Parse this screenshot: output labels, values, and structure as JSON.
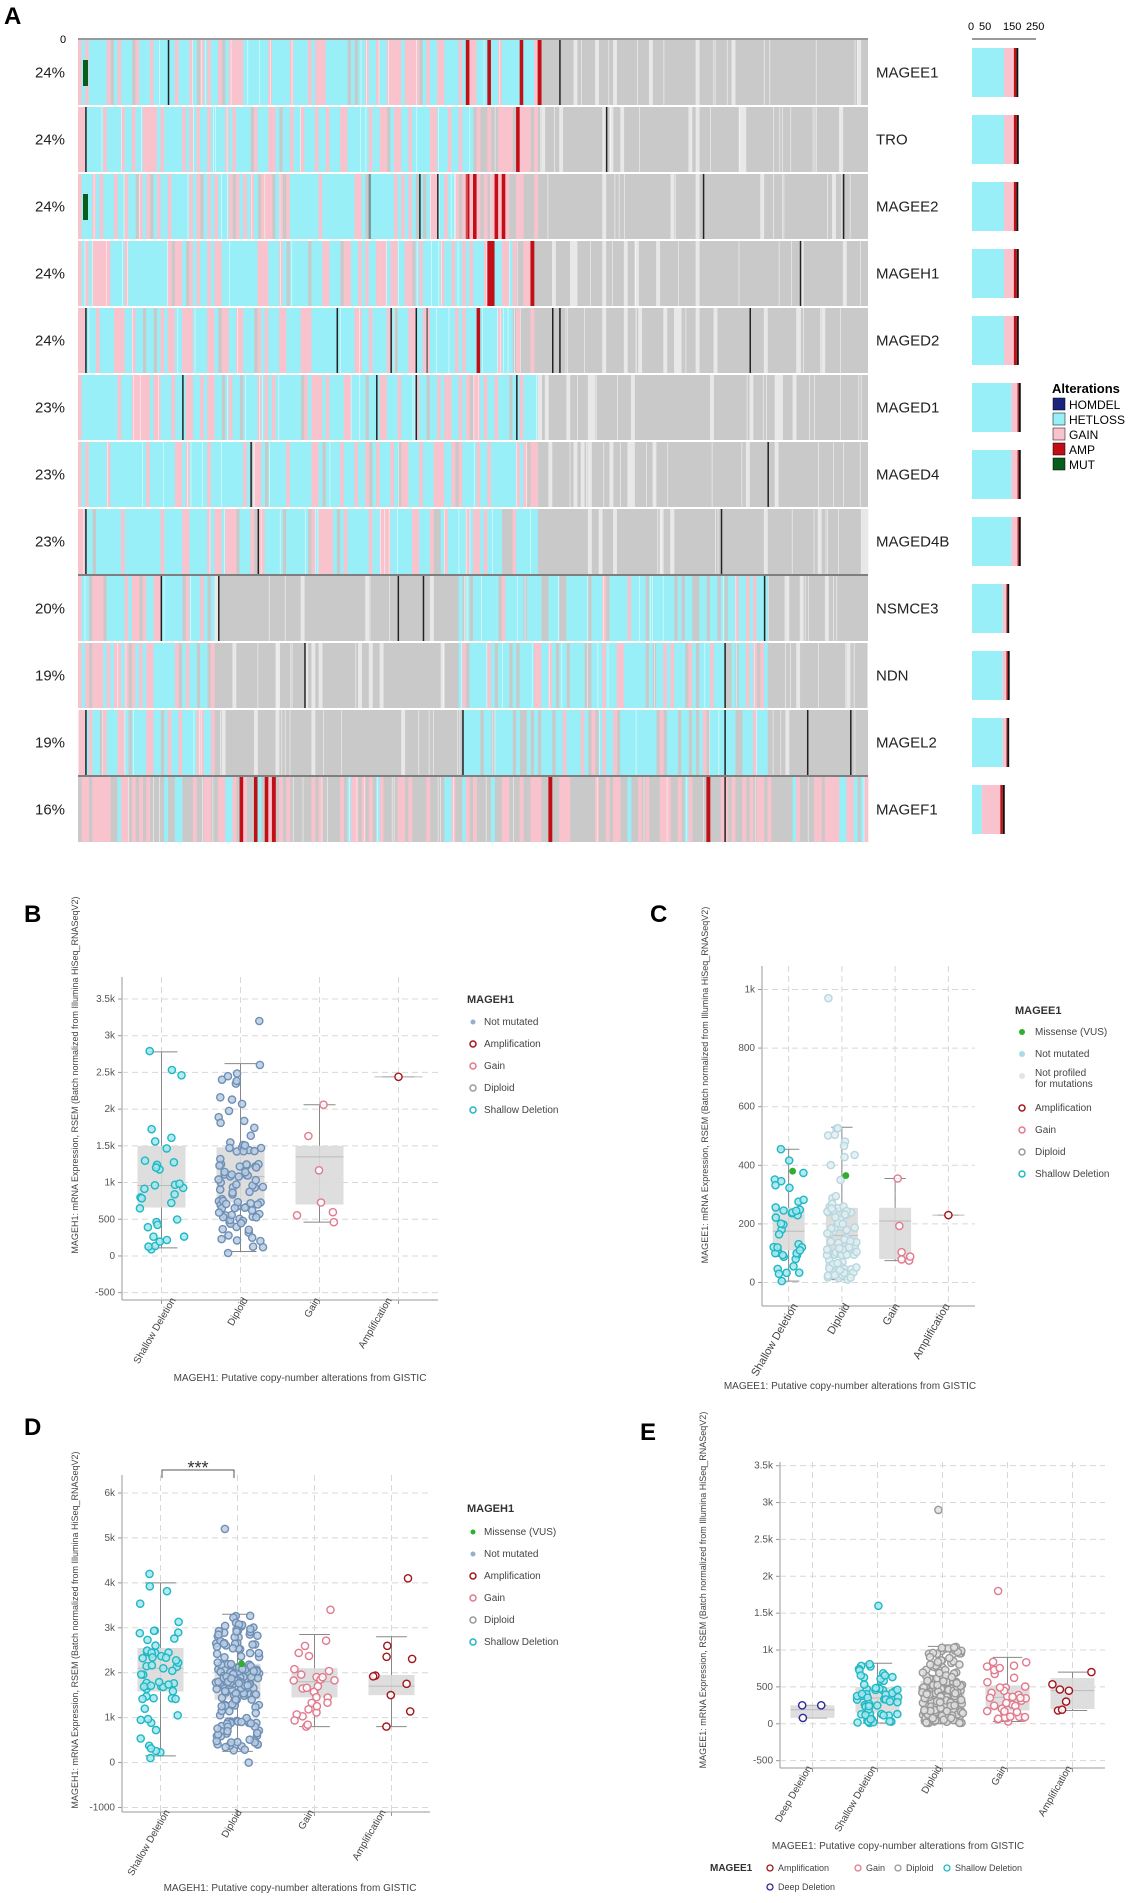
{
  "panel_labels": {
    "A": "A",
    "B": "B",
    "C": "C",
    "D": "D",
    "E": "E"
  },
  "colors": {
    "homdel": "#1a237e",
    "hetloss": "#99eff7",
    "gain": "#f8c3cd",
    "amp": "#c20e15",
    "mut": "#0a5c1c",
    "none": "#c9c9c9",
    "cyan": "#1fb8c4",
    "blue": "#91b0cf",
    "red": "#a3151c",
    "pink": "#e07a8d",
    "grey": "#aaaaaa",
    "green": "#2fae2f",
    "navy": "#2a2a9a"
  },
  "chart_data": [
    {
      "panel": "A",
      "type": "heatmap",
      "title": "",
      "top_axis_tick": "0",
      "hist_ticks": [
        "0",
        "50",
        "150",
        "250"
      ],
      "legend": {
        "title": "Alterations",
        "entries": [
          {
            "label": "HOMDEL",
            "color": "#1a237e"
          },
          {
            "label": "HETLOSS",
            "color": "#99eff7"
          },
          {
            "label": "GAIN",
            "color": "#f8c3cd"
          },
          {
            "label": "AMP",
            "color": "#c20e15"
          },
          {
            "label": "MUT",
            "color": "#0a5c1c"
          }
        ]
      },
      "rows": [
        {
          "gene": "MAGEE1",
          "pct": "24%",
          "hist": [
            130,
            40,
            10
          ]
        },
        {
          "gene": "TRO",
          "pct": "24%",
          "hist": [
            130,
            40,
            12
          ]
        },
        {
          "gene": "MAGEE2",
          "pct": "24%",
          "hist": [
            130,
            40,
            10
          ]
        },
        {
          "gene": "MAGEH1",
          "pct": "24%",
          "hist": [
            130,
            40,
            12
          ]
        },
        {
          "gene": "MAGED2",
          "pct": "24%",
          "hist": [
            130,
            40,
            12
          ]
        },
        {
          "gene": "MAGED1",
          "pct": "23%",
          "hist": [
            160,
            25,
            5
          ]
        },
        {
          "gene": "MAGED4",
          "pct": "23%",
          "hist": [
            160,
            25,
            5
          ]
        },
        {
          "gene": "MAGED4B",
          "pct": "23%",
          "hist": [
            160,
            25,
            5
          ]
        },
        {
          "gene": "NSMCE3",
          "pct": "20%",
          "hist": [
            125,
            15,
            3
          ]
        },
        {
          "gene": "NDN",
          "pct": "19%",
          "hist": [
            125,
            15,
            5
          ]
        },
        {
          "gene": "MAGEL2",
          "pct": "19%",
          "hist": [
            125,
            15,
            3
          ]
        },
        {
          "gene": "MAGEF1",
          "pct": "16%",
          "hist": [
            40,
            75,
            10
          ]
        }
      ],
      "hist_max": 260
    },
    {
      "panel": "B",
      "type": "scatter",
      "ylabel": "MAGEH1: mRNA Expression, RSEM (Batch normalized from Illumina HiSeq_RNASeqV2)",
      "xlabel": "MAGEH1: Putative copy-number alterations from GISTIC",
      "categories": [
        "Shallow Deletion",
        "Diploid",
        "Gain",
        "Amplification"
      ],
      "yticks": [
        "-500",
        "0",
        "500",
        "1k",
        "1.5k",
        "2k",
        "2.5k",
        "3k",
        "3.5k"
      ],
      "ytick_values": [
        -500,
        0,
        500,
        1000,
        1500,
        2000,
        2500,
        3000,
        3500
      ],
      "ylim": [
        -600,
        3800
      ],
      "legend_title": "MAGEH1",
      "legend": [
        {
          "label": "Not mutated",
          "kind": "dot",
          "color": "#91b0cf"
        },
        {
          "label": "Amplification",
          "kind": "ring",
          "color": "#a3151c"
        },
        {
          "label": "Gain",
          "kind": "ring",
          "color": "#e07a8d"
        },
        {
          "label": "Diploid",
          "kind": "ring",
          "color": "#999999"
        },
        {
          "label": "Shallow Deletion",
          "kind": "ring",
          "color": "#1fb8c4"
        }
      ],
      "series": [
        {
          "name": "Shallow Deletion",
          "n": 34,
          "q1": 660,
          "median": 960,
          "q3": 1500,
          "wlo": 110,
          "whi": 2780,
          "min": 90,
          "max": 2790,
          "color": "#1fb8c4",
          "fill": "#a6e6ec"
        },
        {
          "name": "Diploid",
          "n": 95,
          "q1": 730,
          "median": 1080,
          "q3": 1480,
          "wlo": 60,
          "whi": 2620,
          "min": 40,
          "max": 3200,
          "color": "#6f8fb5",
          "fill": "#b9cde2"
        },
        {
          "name": "Gain",
          "n": 7,
          "q1": 700,
          "median": 1350,
          "q3": 1500,
          "wlo": 460,
          "whi": 2060,
          "min": 460,
          "max": 2060,
          "color": "#e07a8d",
          "fill": "#ffffff"
        },
        {
          "name": "Amplification",
          "n": 1,
          "q1": 2440,
          "median": 2440,
          "q3": 2440,
          "wlo": 2440,
          "whi": 2440,
          "min": 2440,
          "max": 2440,
          "color": "#a3151c",
          "fill": "#ffffff"
        }
      ]
    },
    {
      "panel": "C",
      "type": "scatter",
      "ylabel": "MAGEE1: mRNA Expression, RSEM (Batch normalized from Illumina HiSeq_RNASeqV2)",
      "xlabel": "MAGEE1: Putative copy-number alterations from GISTIC",
      "categories": [
        "Shallow Deletion",
        "Diploid",
        "Gain",
        "Amplification"
      ],
      "yticks": [
        "0",
        "200",
        "400",
        "600",
        "800",
        "1k"
      ],
      "ytick_values": [
        0,
        200,
        400,
        600,
        800,
        1000
      ],
      "ylim": [
        -80,
        1080
      ],
      "legend_title": "MAGEE1",
      "legend": [
        {
          "label": "Missense (VUS)",
          "kind": "dot",
          "color": "#2fae2f"
        },
        {
          "label": "Not mutated",
          "kind": "dot",
          "color": "#a8dbe6"
        },
        {
          "label": "Not profiled",
          "label2": "for mutations",
          "kind": "dot",
          "color": "#e4e4e4"
        },
        {
          "label": "Amplification",
          "kind": "ring",
          "color": "#a3151c"
        },
        {
          "label": "Gain",
          "kind": "ring",
          "color": "#e07a8d"
        },
        {
          "label": "Diploid",
          "kind": "ring",
          "color": "#999999"
        },
        {
          "label": "Shallow Deletion",
          "kind": "ring",
          "color": "#1fb8c4"
        }
      ],
      "series": [
        {
          "name": "Shallow Deletion",
          "n": 40,
          "q1": 110,
          "median": 175,
          "q3": 255,
          "wlo": 5,
          "whi": 455,
          "min": 5,
          "max": 455,
          "color": "#1fb8c4",
          "fill": "#a6e6ec"
        },
        {
          "name": "Diploid",
          "n": 90,
          "q1": 95,
          "median": 160,
          "q3": 255,
          "wlo": 10,
          "whi": 530,
          "min": 10,
          "max": 970,
          "color": "#b7d7df",
          "fill": "#e3eef2"
        },
        {
          "name": "Gain",
          "n": 6,
          "q1": 80,
          "median": 210,
          "q3": 255,
          "wlo": 75,
          "whi": 355,
          "min": 75,
          "max": 355,
          "color": "#e07a8d",
          "fill": "#ffffff"
        },
        {
          "name": "Amplification",
          "n": 1,
          "q1": 230,
          "median": 230,
          "q3": 230,
          "wlo": 230,
          "whi": 230,
          "min": 230,
          "max": 230,
          "color": "#a3151c",
          "fill": "#ffffff"
        }
      ],
      "highlights": [
        {
          "category": "Shallow Deletion",
          "value": 380
        },
        {
          "category": "Diploid",
          "value": 365
        }
      ]
    },
    {
      "panel": "D",
      "type": "scatter",
      "ylabel": "MAGEH1: mRNA Expression, RSEM (Batch normalized from Illumina HiSeq_RNASeqV2)",
      "xlabel": "MAGEH1: Putative copy-number alterations from GISTIC",
      "categories": [
        "Shallow Deletion",
        "Diploid",
        "Gain",
        "Amplification"
      ],
      "yticks": [
        "-1000",
        "0",
        "1k",
        "2k",
        "3k",
        "4k",
        "5k",
        "6k"
      ],
      "ytick_values": [
        -1000,
        0,
        1000,
        2000,
        3000,
        4000,
        5000,
        6000
      ],
      "ylim": [
        -1100,
        6400
      ],
      "significance": "***",
      "legend_title": "MAGEH1",
      "legend": [
        {
          "label": "Missense (VUS)",
          "kind": "dot",
          "color": "#2fae2f"
        },
        {
          "label": "Not mutated",
          "kind": "dot",
          "color": "#91b0cf"
        },
        {
          "label": "Amplification",
          "kind": "ring",
          "color": "#a3151c"
        },
        {
          "label": "Gain",
          "kind": "ring",
          "color": "#e07a8d"
        },
        {
          "label": "Diploid",
          "kind": "ring",
          "color": "#999999"
        },
        {
          "label": "Shallow Deletion",
          "kind": "ring",
          "color": "#1fb8c4"
        }
      ],
      "series": [
        {
          "name": "Shallow Deletion",
          "n": 60,
          "q1": 1580,
          "median": 2100,
          "q3": 2550,
          "wlo": 150,
          "whi": 4000,
          "min": 100,
          "max": 4200,
          "color": "#1fb8c4",
          "fill": "#a6e6ec"
        },
        {
          "name": "Diploid",
          "n": 180,
          "q1": 1400,
          "median": 1850,
          "q3": 2200,
          "wlo": 250,
          "whi": 3300,
          "min": 0,
          "max": 5200,
          "color": "#6f8fb5",
          "fill": "#b9cde2"
        },
        {
          "name": "Gain",
          "n": 30,
          "q1": 1450,
          "median": 1800,
          "q3": 2100,
          "wlo": 800,
          "whi": 2850,
          "min": 800,
          "max": 3400,
          "color": "#e07a8d",
          "fill": "#ffffff"
        },
        {
          "name": "Amplification",
          "n": 10,
          "q1": 1500,
          "median": 1700,
          "q3": 1950,
          "wlo": 800,
          "whi": 2800,
          "min": 800,
          "max": 4100,
          "color": "#a3151c",
          "fill": "#ffffff"
        }
      ],
      "highlights": [
        {
          "category": "Diploid",
          "value": 2200
        }
      ]
    },
    {
      "panel": "E",
      "type": "scatter",
      "ylabel": "MAGEE1: mRNA Expression, RSEM (Batch normalized from Illumina HiSeq_RNASeqV2)",
      "xlabel": "MAGEE1: Putative copy-number alterations from GISTIC",
      "categories": [
        "Deep Deletion",
        "Shallow Deletion",
        "Diploid",
        "Gain",
        "Amplification"
      ],
      "yticks": [
        "-500",
        "0",
        "500",
        "1k",
        "1.5k",
        "2k",
        "2.5k",
        "3k",
        "3.5k"
      ],
      "ytick_values": [
        -500,
        0,
        500,
        1000,
        1500,
        2000,
        2500,
        3000,
        3500
      ],
      "ylim": [
        -600,
        3550
      ],
      "legend_title": "MAGEE1",
      "legend": [
        {
          "label": "Amplification",
          "kind": "ring",
          "color": "#a3151c"
        },
        {
          "label": "Gain",
          "kind": "ring",
          "color": "#e07a8d"
        },
        {
          "label": "Diploid",
          "kind": "ring",
          "color": "#999999"
        },
        {
          "label": "Shallow Deletion",
          "kind": "ring",
          "color": "#1fb8c4"
        },
        {
          "label": "Deep Deletion",
          "kind": "ring",
          "color": "#2a2a9a"
        }
      ],
      "series": [
        {
          "name": "Deep Deletion",
          "n": 3,
          "q1": 80,
          "median": 190,
          "q3": 250,
          "wlo": 80,
          "whi": 250,
          "min": 80,
          "max": 250,
          "color": "#2a2a9a",
          "fill": "#ffffff"
        },
        {
          "name": "Shallow Deletion",
          "n": 60,
          "q1": 150,
          "median": 350,
          "q3": 500,
          "wlo": 10,
          "whi": 820,
          "min": 10,
          "max": 1600,
          "color": "#1fb8c4",
          "fill": "#a6e6ec"
        },
        {
          "name": "Diploid",
          "n": 200,
          "q1": 200,
          "median": 420,
          "q3": 580,
          "wlo": 10,
          "whi": 1050,
          "min": 10,
          "max": 2900,
          "color": "#999999",
          "fill": "#e2e2e2"
        },
        {
          "name": "Gain",
          "n": 40,
          "q1": 180,
          "median": 360,
          "q3": 520,
          "wlo": 30,
          "whi": 900,
          "min": 30,
          "max": 1800,
          "color": "#e07a8d",
          "fill": "#ffffff"
        },
        {
          "name": "Amplification",
          "n": 7,
          "q1": 200,
          "median": 450,
          "q3": 620,
          "wlo": 180,
          "whi": 700,
          "min": 180,
          "max": 700,
          "color": "#a3151c",
          "fill": "#ffffff"
        }
      ]
    }
  ]
}
